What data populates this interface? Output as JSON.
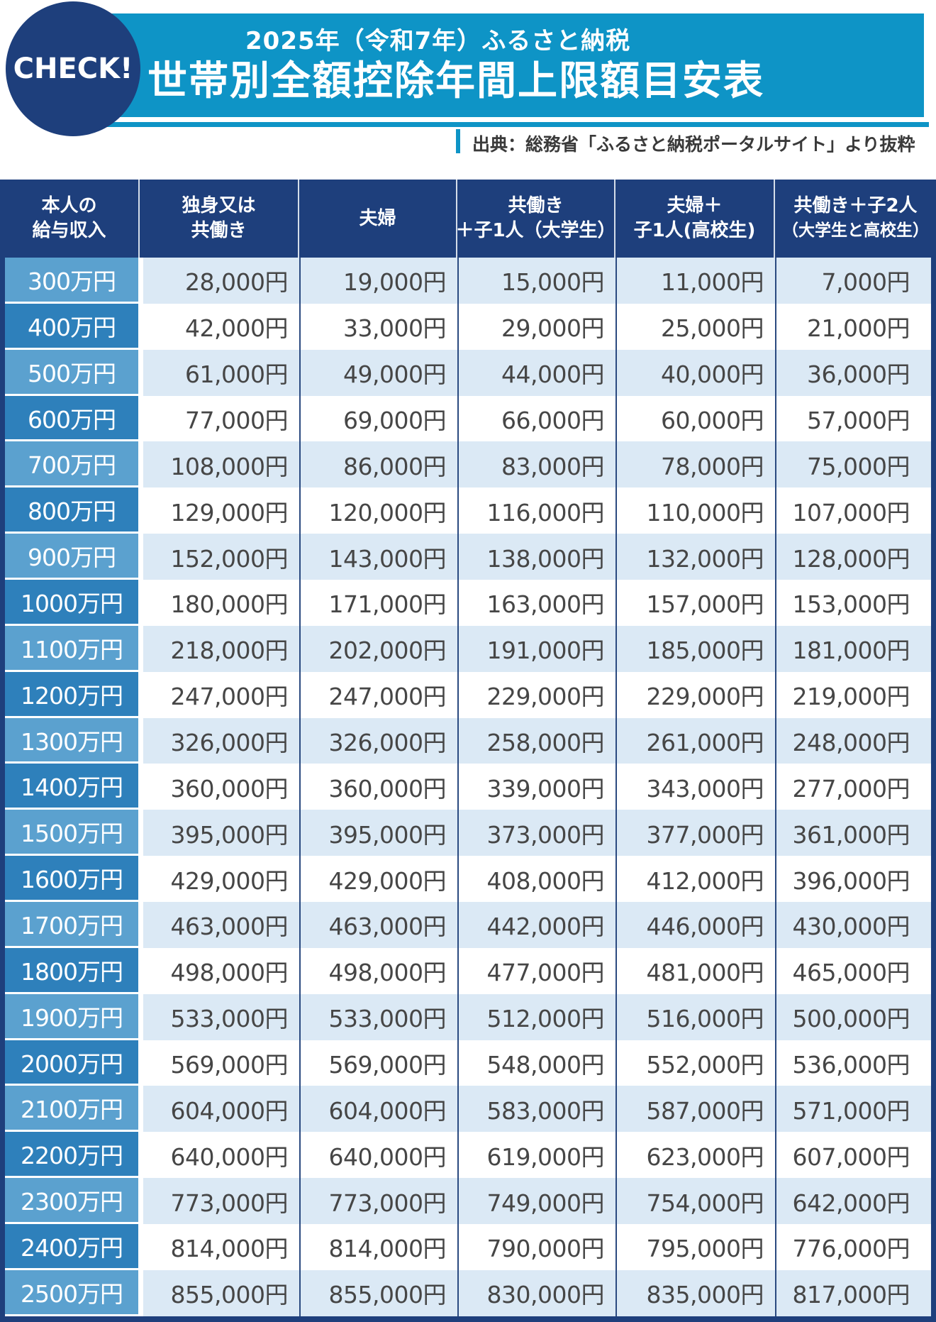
{
  "badge": "CHECK!",
  "header": {
    "subtitle": "2025年（令和7年）ふるさと納税",
    "title": "世帯別全額控除年間上限額目安表"
  },
  "source": "出典：総務省「ふるさと納税ポータルサイト」より抜粋",
  "colors": {
    "cyan": "#0e94c6",
    "navy": "#1e3f7c",
    "income_light": "#5ba1cf",
    "income_dark": "#2e80bb",
    "row_light": "#dbe9f5",
    "row_white": "#ffffff",
    "separator_navy": "#2b4a80",
    "value_text": "#464646"
  },
  "table": {
    "columns": [
      {
        "line1": "本人の",
        "line2": "給与収入"
      },
      {
        "line1": "独身又は",
        "line2": "共働き"
      },
      {
        "line1": "夫婦",
        "line2": ""
      },
      {
        "line1": "共働き",
        "line2": "＋子1人（大学生）"
      },
      {
        "line1": "夫婦＋",
        "line2": "子1人(高校生)"
      },
      {
        "line1": "共働き＋子2人",
        "line2": "（大学生と高校生）"
      }
    ],
    "rows": [
      {
        "income": "300万円",
        "values": [
          "28,000円",
          "19,000円",
          "15,000円",
          "11,000円",
          "7,000円"
        ]
      },
      {
        "income": "400万円",
        "values": [
          "42,000円",
          "33,000円",
          "29,000円",
          "25,000円",
          "21,000円"
        ]
      },
      {
        "income": "500万円",
        "values": [
          "61,000円",
          "49,000円",
          "44,000円",
          "40,000円",
          "36,000円"
        ]
      },
      {
        "income": "600万円",
        "values": [
          "77,000円",
          "69,000円",
          "66,000円",
          "60,000円",
          "57,000円"
        ]
      },
      {
        "income": "700万円",
        "values": [
          "108,000円",
          "86,000円",
          "83,000円",
          "78,000円",
          "75,000円"
        ]
      },
      {
        "income": "800万円",
        "values": [
          "129,000円",
          "120,000円",
          "116,000円",
          "110,000円",
          "107,000円"
        ]
      },
      {
        "income": "900万円",
        "values": [
          "152,000円",
          "143,000円",
          "138,000円",
          "132,000円",
          "128,000円"
        ]
      },
      {
        "income": "1000万円",
        "values": [
          "180,000円",
          "171,000円",
          "163,000円",
          "157,000円",
          "153,000円"
        ]
      },
      {
        "income": "1100万円",
        "values": [
          "218,000円",
          "202,000円",
          "191,000円",
          "185,000円",
          "181,000円"
        ]
      },
      {
        "income": "1200万円",
        "values": [
          "247,000円",
          "247,000円",
          "229,000円",
          "229,000円",
          "219,000円"
        ]
      },
      {
        "income": "1300万円",
        "values": [
          "326,000円",
          "326,000円",
          "258,000円",
          "261,000円",
          "248,000円"
        ]
      },
      {
        "income": "1400万円",
        "values": [
          "360,000円",
          "360,000円",
          "339,000円",
          "343,000円",
          "277,000円"
        ]
      },
      {
        "income": "1500万円",
        "values": [
          "395,000円",
          "395,000円",
          "373,000円",
          "377,000円",
          "361,000円"
        ]
      },
      {
        "income": "1600万円",
        "values": [
          "429,000円",
          "429,000円",
          "408,000円",
          "412,000円",
          "396,000円"
        ]
      },
      {
        "income": "1700万円",
        "values": [
          "463,000円",
          "463,000円",
          "442,000円",
          "446,000円",
          "430,000円"
        ]
      },
      {
        "income": "1800万円",
        "values": [
          "498,000円",
          "498,000円",
          "477,000円",
          "481,000円",
          "465,000円"
        ]
      },
      {
        "income": "1900万円",
        "values": [
          "533,000円",
          "533,000円",
          "512,000円",
          "516,000円",
          "500,000円"
        ]
      },
      {
        "income": "2000万円",
        "values": [
          "569,000円",
          "569,000円",
          "548,000円",
          "552,000円",
          "536,000円"
        ]
      },
      {
        "income": "2100万円",
        "values": [
          "604,000円",
          "604,000円",
          "583,000円",
          "587,000円",
          "571,000円"
        ]
      },
      {
        "income": "2200万円",
        "values": [
          "640,000円",
          "640,000円",
          "619,000円",
          "623,000円",
          "607,000円"
        ]
      },
      {
        "income": "2300万円",
        "values": [
          "773,000円",
          "773,000円",
          "749,000円",
          "754,000円",
          "642,000円"
        ]
      },
      {
        "income": "2400万円",
        "values": [
          "814,000円",
          "814,000円",
          "790,000円",
          "795,000円",
          "776,000円"
        ]
      },
      {
        "income": "2500万円",
        "values": [
          "855,000円",
          "855,000円",
          "830,000円",
          "835,000円",
          "817,000円"
        ]
      }
    ]
  },
  "chart_data": {
    "type": "table",
    "title": "世帯別全額控除年間上限額目安表",
    "subtitle": "2025年（令和7年）ふるさと納税",
    "source": "出典：総務省「ふるさと納税ポータルサイト」より抜粋",
    "categories": [
      "300万円",
      "400万円",
      "500万円",
      "600万円",
      "700万円",
      "800万円",
      "900万円",
      "1000万円",
      "1100万円",
      "1200万円",
      "1300万円",
      "1400万円",
      "1500万円",
      "1600万円",
      "1700万円",
      "1800万円",
      "1900万円",
      "2000万円",
      "2100万円",
      "2200万円",
      "2300万円",
      "2400万円",
      "2500万円"
    ],
    "series": [
      {
        "name": "独身又は共働き",
        "values": [
          28000,
          42000,
          61000,
          77000,
          108000,
          129000,
          152000,
          180000,
          218000,
          247000,
          326000,
          360000,
          395000,
          429000,
          463000,
          498000,
          533000,
          569000,
          604000,
          640000,
          773000,
          814000,
          855000
        ]
      },
      {
        "name": "夫婦",
        "values": [
          19000,
          33000,
          49000,
          69000,
          86000,
          120000,
          143000,
          171000,
          202000,
          247000,
          326000,
          360000,
          395000,
          429000,
          463000,
          498000,
          533000,
          569000,
          604000,
          640000,
          773000,
          814000,
          855000
        ]
      },
      {
        "name": "共働き＋子1人（大学生）",
        "values": [
          15000,
          29000,
          44000,
          66000,
          83000,
          116000,
          138000,
          163000,
          191000,
          229000,
          258000,
          339000,
          373000,
          408000,
          442000,
          477000,
          512000,
          548000,
          583000,
          619000,
          749000,
          790000,
          830000
        ]
      },
      {
        "name": "夫婦＋子1人(高校生)",
        "values": [
          11000,
          25000,
          40000,
          60000,
          78000,
          110000,
          132000,
          157000,
          185000,
          229000,
          261000,
          343000,
          377000,
          412000,
          446000,
          481000,
          516000,
          552000,
          587000,
          623000,
          754000,
          795000,
          835000
        ]
      },
      {
        "name": "共働き＋子2人（大学生と高校生）",
        "values": [
          7000,
          21000,
          36000,
          57000,
          75000,
          107000,
          128000,
          153000,
          181000,
          219000,
          248000,
          277000,
          361000,
          396000,
          430000,
          465000,
          500000,
          536000,
          571000,
          607000,
          642000,
          776000,
          817000
        ]
      }
    ],
    "unit": "円",
    "x_axis_label": "本人の給与収入"
  }
}
